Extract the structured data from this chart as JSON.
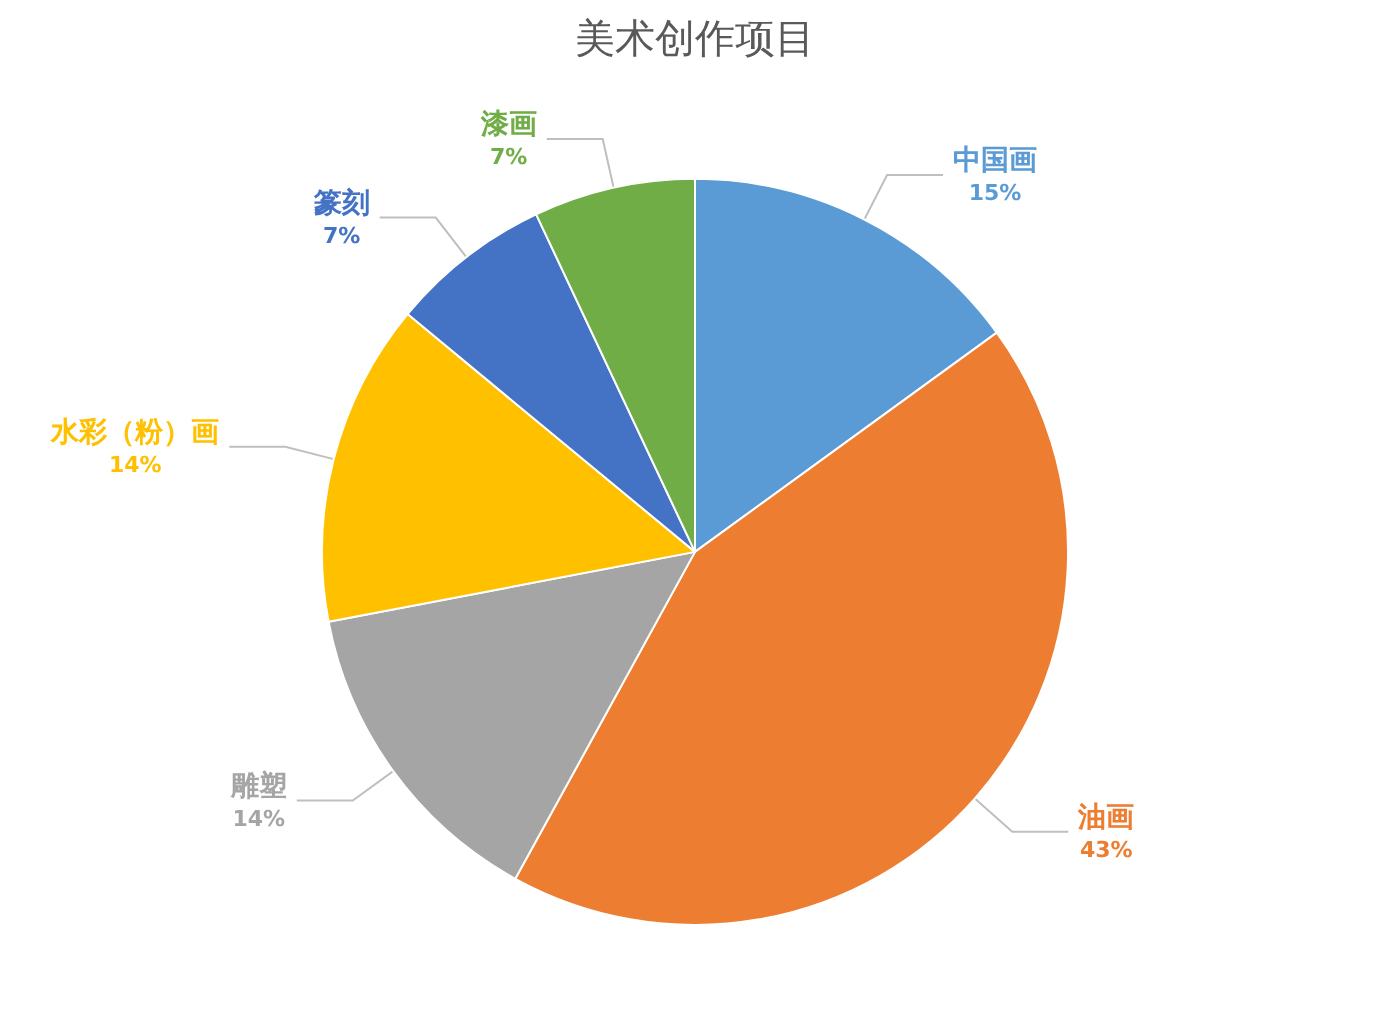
{
  "chart_data": {
    "type": "pie",
    "title": "美术创作项目",
    "categories": [
      "中国画",
      "油画",
      "雕塑",
      "水彩（粉）画",
      "篆刻",
      "漆画"
    ],
    "values": [
      15,
      43,
      14,
      14,
      7,
      7
    ],
    "value_labels": [
      "15%",
      "43%",
      "14%",
      "14%",
      "7%",
      "7%"
    ],
    "colors": [
      "#5b9bd5",
      "#ed7d31",
      "#a5a5a5",
      "#ffc000",
      "#4472c4",
      "#70ad47"
    ],
    "legend": false
  }
}
